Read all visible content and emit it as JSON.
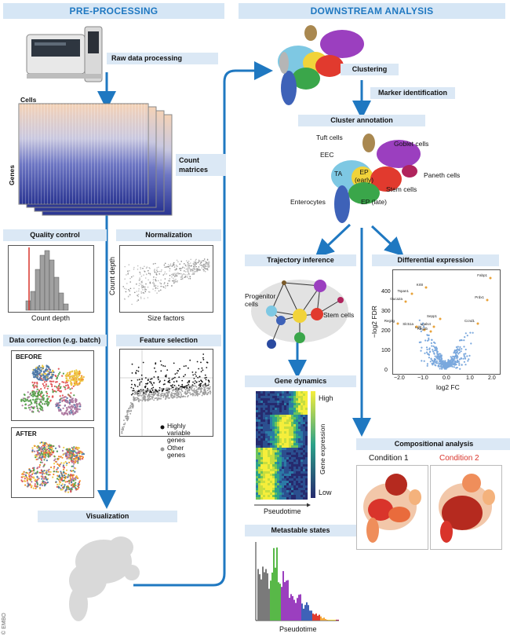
{
  "sections": {
    "left": "PRE-PROCESSING",
    "right": "DOWNSTREAM ANALYSIS"
  },
  "steps": {
    "raw": "Raw data processing",
    "count": "Count matrices",
    "qc": "Quality control",
    "norm": "Normalization",
    "batch": "Data correction (e.g. batch)",
    "feature": "Feature selection",
    "viz": "Visualization",
    "clustering": "Clustering",
    "marker": "Marker identification",
    "annot": "Cluster annotation",
    "traj": "Trajectory inference",
    "diff": "Differential expression",
    "gene_dyn": "Gene dynamics",
    "comp": "Compositional analysis",
    "meta": "Metastable states"
  },
  "matrix": {
    "cells": "Cells",
    "genes": "Genes"
  },
  "qc": {
    "xlabel": "Count depth"
  },
  "norm": {
    "xlabel": "Size factors",
    "ylabel": "Count depth"
  },
  "batch": {
    "before": "BEFORE",
    "after": "AFTER"
  },
  "feature": {
    "legend_hv": "Highly variable genes",
    "legend_other": "Other genes"
  },
  "annotation_labels": {
    "tuft": "Tuft cells",
    "goblet": "Goblet cells",
    "eec": "EEC",
    "ta": "TA",
    "ep_early": "EP (early)",
    "paneth": "Paneth cells",
    "stem": "Stem cells",
    "enterocytes": "Enterocytes",
    "ep_late": "EP (late)"
  },
  "trajectory": {
    "progenitor": "Progenitor cells",
    "stem": "Stem cells"
  },
  "gene_dynamics": {
    "high": "High",
    "low": "Low",
    "ylabel": "Gene expression",
    "xlabel": "Pseudotime"
  },
  "volcano": {
    "ylabel": "−log2 FDR",
    "xlabel": "log2 FC",
    "yticks": [
      "0",
      "100",
      "200",
      "300",
      "400"
    ],
    "xticks": [
      "−2.0",
      "−1.0",
      "0.0",
      "1.0",
      "2.0"
    ],
    "genes": [
      "Fabp1",
      "Krt8",
      "Tspan1",
      "Guca2a",
      "Reg3g",
      "Cd9",
      "Slc51a",
      "Lgals4",
      "Sepp1",
      "Reg3b",
      "Prdx1",
      "Ccnd1"
    ]
  },
  "composition": {
    "cond1": "Condition 1",
    "cond2": "Condition 2"
  },
  "metastable": {
    "xlabel": "Pseudotime"
  },
  "copyright": "© EMBO",
  "colors": {
    "accent": "#1f78c1",
    "band": "#d6e6f5",
    "condition2": "#d9342b"
  }
}
